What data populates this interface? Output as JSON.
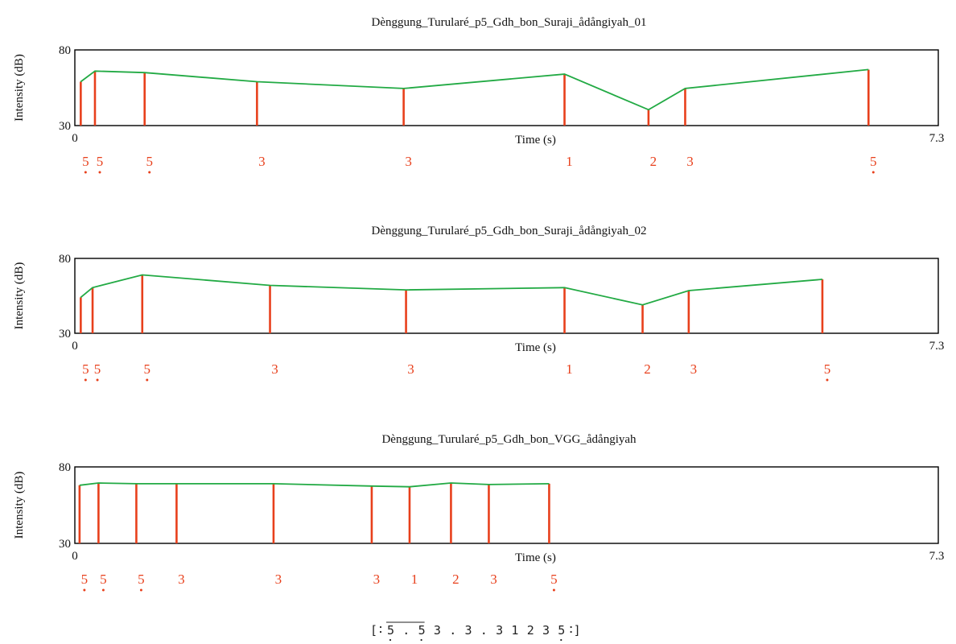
{
  "chart_data": [
    {
      "type": "line",
      "title": "Dènggung_Turularé_p5_Gdh_bon_Suraji_ådångiyah_01",
      "xlabel": "Time (s)",
      "ylabel": "Intensity (dB)",
      "xlim": [
        0,
        7.3
      ],
      "ylim": [
        30,
        80
      ],
      "x_tick_labels": [
        "0",
        "7.3"
      ],
      "y_tick_labels": [
        "30",
        "80"
      ],
      "points": [
        {
          "x": 0.05,
          "y": 59.0
        },
        {
          "x": 0.17,
          "y": 66.0
        },
        {
          "x": 0.59,
          "y": 65.0
        },
        {
          "x": 1.54,
          "y": 59.0
        },
        {
          "x": 2.78,
          "y": 54.5
        },
        {
          "x": 4.14,
          "y": 64.0
        },
        {
          "x": 4.85,
          "y": 40.5
        },
        {
          "x": 5.16,
          "y": 54.5
        },
        {
          "x": 6.71,
          "y": 67.0
        }
      ],
      "notes": [
        "5",
        "5",
        "5",
        "3",
        "3",
        "1",
        "2",
        "3",
        "5"
      ],
      "note_dots": [
        true,
        true,
        true,
        false,
        false,
        false,
        false,
        false,
        true
      ]
    },
    {
      "type": "line",
      "title": "Dènggung_Turularé_p5_Gdh_bon_Suraji_ådångiyah_02",
      "xlabel": "Time (s)",
      "ylabel": "Intensity (dB)",
      "xlim": [
        0,
        7.3
      ],
      "ylim": [
        30,
        80
      ],
      "x_tick_labels": [
        "0",
        "7.3"
      ],
      "y_tick_labels": [
        "30",
        "80"
      ],
      "points": [
        {
          "x": 0.05,
          "y": 54.0
        },
        {
          "x": 0.15,
          "y": 60.5
        },
        {
          "x": 0.57,
          "y": 69.0
        },
        {
          "x": 1.65,
          "y": 62.0
        },
        {
          "x": 2.8,
          "y": 59.0
        },
        {
          "x": 4.14,
          "y": 60.5
        },
        {
          "x": 4.8,
          "y": 49.0
        },
        {
          "x": 5.19,
          "y": 58.5
        },
        {
          "x": 6.32,
          "y": 66.0
        }
      ],
      "notes": [
        "5",
        "5",
        "5",
        "3",
        "3",
        "1",
        "2",
        "3",
        "5"
      ],
      "note_dots": [
        true,
        true,
        true,
        false,
        false,
        false,
        false,
        false,
        true
      ]
    },
    {
      "type": "line",
      "title": "Dènggung_Turularé_p5_Gdh_bon_VGG_ådångiyah",
      "xlabel": "Time (s)",
      "ylabel": "Intensity (dB)",
      "xlim": [
        0,
        7.3
      ],
      "ylim": [
        30,
        80
      ],
      "x_tick_labels": [
        "0",
        "7.3"
      ],
      "y_tick_labels": [
        "30",
        "80"
      ],
      "points": [
        {
          "x": 0.04,
          "y": 68.0
        },
        {
          "x": 0.2,
          "y": 69.5
        },
        {
          "x": 0.52,
          "y": 69.0
        },
        {
          "x": 0.86,
          "y": 69.0
        },
        {
          "x": 1.68,
          "y": 69.0
        },
        {
          "x": 2.51,
          "y": 67.5
        },
        {
          "x": 2.83,
          "y": 67.0
        },
        {
          "x": 3.18,
          "y": 69.5
        },
        {
          "x": 3.5,
          "y": 68.5
        },
        {
          "x": 4.01,
          "y": 69.0
        }
      ],
      "notes": [
        "5",
        "5",
        "5",
        "3",
        "3",
        "3",
        "1",
        "2",
        "3",
        "5"
      ],
      "note_dots": [
        true,
        true,
        true,
        false,
        false,
        false,
        false,
        false,
        false,
        true
      ]
    }
  ],
  "notation": {
    "open": "[",
    "cells": [
      "5",
      ".",
      "5",
      "3",
      ".",
      "3",
      ".",
      "3",
      "1",
      "2",
      "3",
      "5"
    ],
    "close": "]"
  }
}
